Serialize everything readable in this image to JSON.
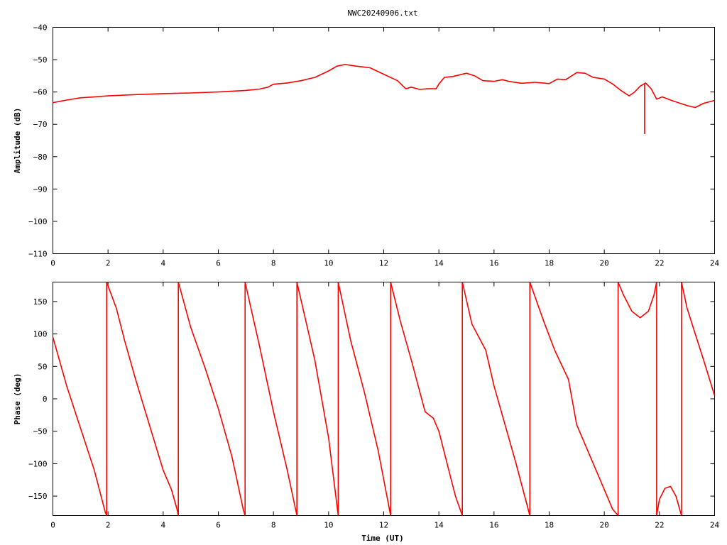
{
  "chart_data": [
    {
      "type": "line",
      "title": "NWC20240906.txt",
      "xlabel": "",
      "ylabel": "Amplitude (dB)",
      "xlim": [
        0,
        24
      ],
      "ylim": [
        -110,
        -40
      ],
      "xticks": [
        "0",
        "2",
        "4",
        "6",
        "8",
        "10",
        "12",
        "14",
        "16",
        "18",
        "20",
        "22",
        "24"
      ],
      "yticks": [
        "-40",
        "-50",
        "-60",
        "-70",
        "-80",
        "-90",
        "-100",
        "-110"
      ],
      "grid": false,
      "color": "#ff0000",
      "series": [
        {
          "x": [
            0,
            0.5,
            1,
            1.5,
            2,
            3,
            4,
            5,
            6,
            7,
            7.5,
            7.8,
            8,
            8.5,
            9,
            9.5,
            10,
            10.3,
            10.6,
            11,
            11.5,
            12,
            12.5,
            12.8,
            13,
            13.3,
            13.6,
            13.9,
            14,
            14.2,
            14.5,
            15,
            15.3,
            15.6,
            16,
            16.3,
            16.6,
            17,
            17.5,
            18,
            18.3,
            18.6,
            19,
            19.3,
            19.6,
            20,
            20.3,
            20.6,
            20.9,
            21.1,
            21.3,
            21.5,
            21.7,
            21.9,
            22.1,
            22.5,
            23,
            23.3,
            23.6,
            24
          ],
          "y": [
            -63.3,
            -62.5,
            -61.8,
            -61.5,
            -61.2,
            -60.8,
            -60.5,
            -60.3,
            -60,
            -59.5,
            -59.1,
            -58.5,
            -57.6,
            -57.2,
            -56.5,
            -55.5,
            -53.5,
            -52,
            -51.5,
            -52,
            -52.5,
            -54.5,
            -56.5,
            -59,
            -58.5,
            -59.2,
            -59,
            -59,
            -57.5,
            -55.5,
            -55.2,
            -54.2,
            -55,
            -56.5,
            -56.7,
            -56.2,
            -56.8,
            -57.3,
            -57,
            -57.4,
            -56,
            -56.2,
            -54,
            -54.2,
            -55.5,
            -56,
            -57.5,
            -59.5,
            -61.2,
            -60,
            -58.2,
            -57.2,
            -59,
            -62.2,
            -61.5,
            -62.8,
            -64.2,
            -64.8,
            -63.5,
            -62.6
          ]
        },
        {
          "x": [
            21.46,
            21.46
          ],
          "y": [
            -57.5,
            -73
          ]
        }
      ]
    },
    {
      "type": "line",
      "title": "",
      "xlabel": "Time (UT)",
      "ylabel": "Phase (deg)",
      "xlim": [
        0,
        24
      ],
      "ylim": [
        -180,
        180
      ],
      "xticks": [
        "0",
        "2",
        "4",
        "6",
        "8",
        "10",
        "12",
        "14",
        "16",
        "18",
        "20",
        "22",
        "24"
      ],
      "yticks": [
        "150",
        "100",
        "50",
        "0",
        "-50",
        "-100",
        "-150"
      ],
      "grid": false,
      "color": "#ff0000",
      "series": [
        {
          "x": [
            0,
            0.5,
            1,
            1.5,
            1.9,
            1.95
          ],
          "y": [
            95,
            20,
            -45,
            -110,
            -175,
            -180
          ]
        },
        {
          "x": [
            1.95,
            1.95
          ],
          "y": [
            -180,
            180
          ]
        },
        {
          "x": [
            1.95,
            2.3,
            2.6,
            3,
            3.5,
            4,
            4.3,
            4.5,
            4.55
          ],
          "y": [
            180,
            140,
            90,
            30,
            -40,
            -110,
            -140,
            -170,
            -180
          ]
        },
        {
          "x": [
            4.55,
            4.55
          ],
          "y": [
            -180,
            180
          ]
        },
        {
          "x": [
            4.55,
            5,
            5.5,
            6,
            6.5,
            6.9,
            6.97
          ],
          "y": [
            180,
            110,
            50,
            -15,
            -90,
            -170,
            -180
          ]
        },
        {
          "x": [
            6.97,
            6.97
          ],
          "y": [
            -180,
            180
          ]
        },
        {
          "x": [
            6.97,
            7.5,
            8,
            8.5,
            8.85
          ],
          "y": [
            180,
            80,
            -20,
            -110,
            -180
          ]
        },
        {
          "x": [
            8.85,
            8.85
          ],
          "y": [
            -180,
            180
          ]
        },
        {
          "x": [
            8.85,
            9.5,
            10,
            10.35
          ],
          "y": [
            180,
            60,
            -60,
            -180
          ]
        },
        {
          "x": [
            10.35,
            10.35
          ],
          "y": [
            -180,
            180
          ]
        },
        {
          "x": [
            10.35,
            10.8,
            11.3,
            11.8,
            12.25
          ],
          "y": [
            180,
            90,
            10,
            -80,
            -180
          ]
        },
        {
          "x": [
            12.25,
            12.25
          ],
          "y": [
            -180,
            180
          ]
        },
        {
          "x": [
            12.25,
            12.6,
            13,
            13.5,
            13.8,
            14,
            14.3,
            14.6,
            14.85
          ],
          "y": [
            180,
            120,
            60,
            -20,
            -30,
            -50,
            -100,
            -150,
            -180
          ]
        },
        {
          "x": [
            14.85,
            14.85
          ],
          "y": [
            -180,
            180
          ]
        },
        {
          "x": [
            14.85,
            15.2,
            15.7,
            16,
            16.4,
            16.8,
            17.3
          ],
          "y": [
            180,
            115,
            75,
            20,
            -40,
            -100,
            -180
          ]
        },
        {
          "x": [
            17.3,
            17.3
          ],
          "y": [
            -180,
            180
          ]
        },
        {
          "x": [
            17.3,
            17.8,
            18.2,
            18.7,
            19,
            19.5,
            20,
            20.3,
            20.5
          ],
          "y": [
            180,
            120,
            75,
            30,
            -40,
            -90,
            -140,
            -170,
            -180
          ]
        },
        {
          "x": [
            20.5,
            20.5
          ],
          "y": [
            -180,
            180
          ]
        },
        {
          "x": [
            20.5,
            20.7,
            21,
            21.3,
            21.6,
            21.8,
            21.9
          ],
          "y": [
            180,
            160,
            135,
            125,
            135,
            160,
            180
          ]
        },
        {
          "x": [
            21.9,
            21.9
          ],
          "y": [
            -180,
            180
          ]
        },
        {
          "x": [
            21.9,
            22,
            22.2,
            22.4,
            22.6,
            22.8
          ],
          "y": [
            -180,
            -155,
            -138,
            -135,
            -150,
            -180
          ]
        },
        {
          "x": [
            22.8,
            22.8
          ],
          "y": [
            -180,
            180
          ]
        },
        {
          "x": [
            22.8,
            23,
            23.3,
            23.6,
            24
          ],
          "y": [
            180,
            140,
            100,
            60,
            5
          ]
        }
      ]
    }
  ]
}
